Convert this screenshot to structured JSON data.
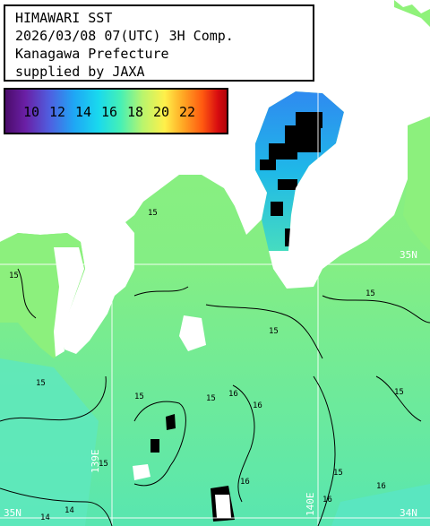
{
  "header": {
    "line1": "HIMAWARI SST",
    "line2": "2026/03/08 07(UTC) 3H Comp.",
    "line3": "Kanagawa Prefecture",
    "line4": "supplied by JAXA"
  },
  "legend": {
    "ticks": [
      "10",
      "12",
      "14",
      "16",
      "18",
      "20",
      "22"
    ],
    "colors": [
      "#4b0c6b",
      "#1fa6f5",
      "#45f0b6",
      "#fff04a",
      "#ff5a10",
      "#b0050a"
    ]
  },
  "grid_labels": {
    "lat_35": "35N",
    "lat_34": "34N",
    "lon_139": "139E",
    "lon_140": "140E",
    "left_edge": "35N"
  },
  "isotherms": {
    "values": [
      "14",
      "15",
      "15",
      "15",
      "15",
      "15",
      "15",
      "15",
      "15",
      "15",
      "16",
      "16",
      "16",
      "14",
      "16",
      "15",
      "16"
    ]
  },
  "colors": {
    "land": "#ffffff",
    "sea_green": "#8cf07d",
    "sea_cyan": "#55e8c0",
    "cold_blue": "#1a7cf2",
    "cloud_mask": "#000000",
    "grid": "#ffffff"
  }
}
